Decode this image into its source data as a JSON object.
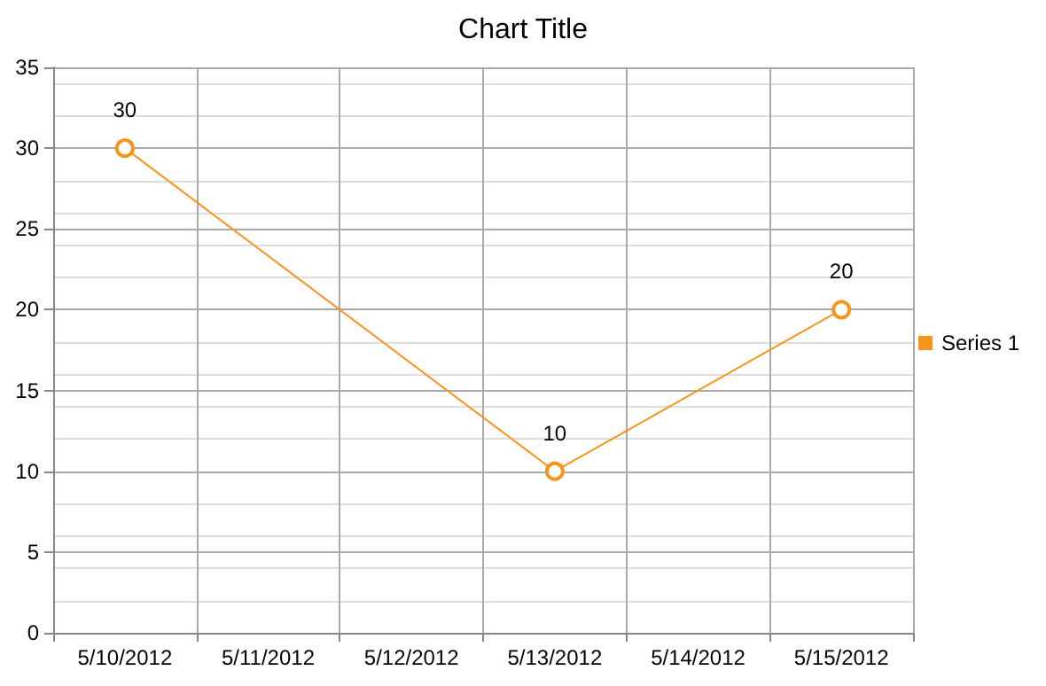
{
  "chart_data": {
    "type": "line",
    "title": "Chart Title",
    "categories": [
      "5/10/2012",
      "5/11/2012",
      "5/12/2012",
      "5/13/2012",
      "5/14/2012",
      "5/15/2012"
    ],
    "series": [
      {
        "name": "Series 1",
        "color": "#f7941d",
        "values": [
          30,
          null,
          null,
          10,
          null,
          20
        ]
      }
    ],
    "ylim": [
      0,
      35
    ],
    "yticks": [
      0,
      5,
      10,
      15,
      20,
      25,
      30,
      35
    ],
    "grid": true,
    "legend": "right",
    "marker": "circle",
    "data_labels": true
  }
}
